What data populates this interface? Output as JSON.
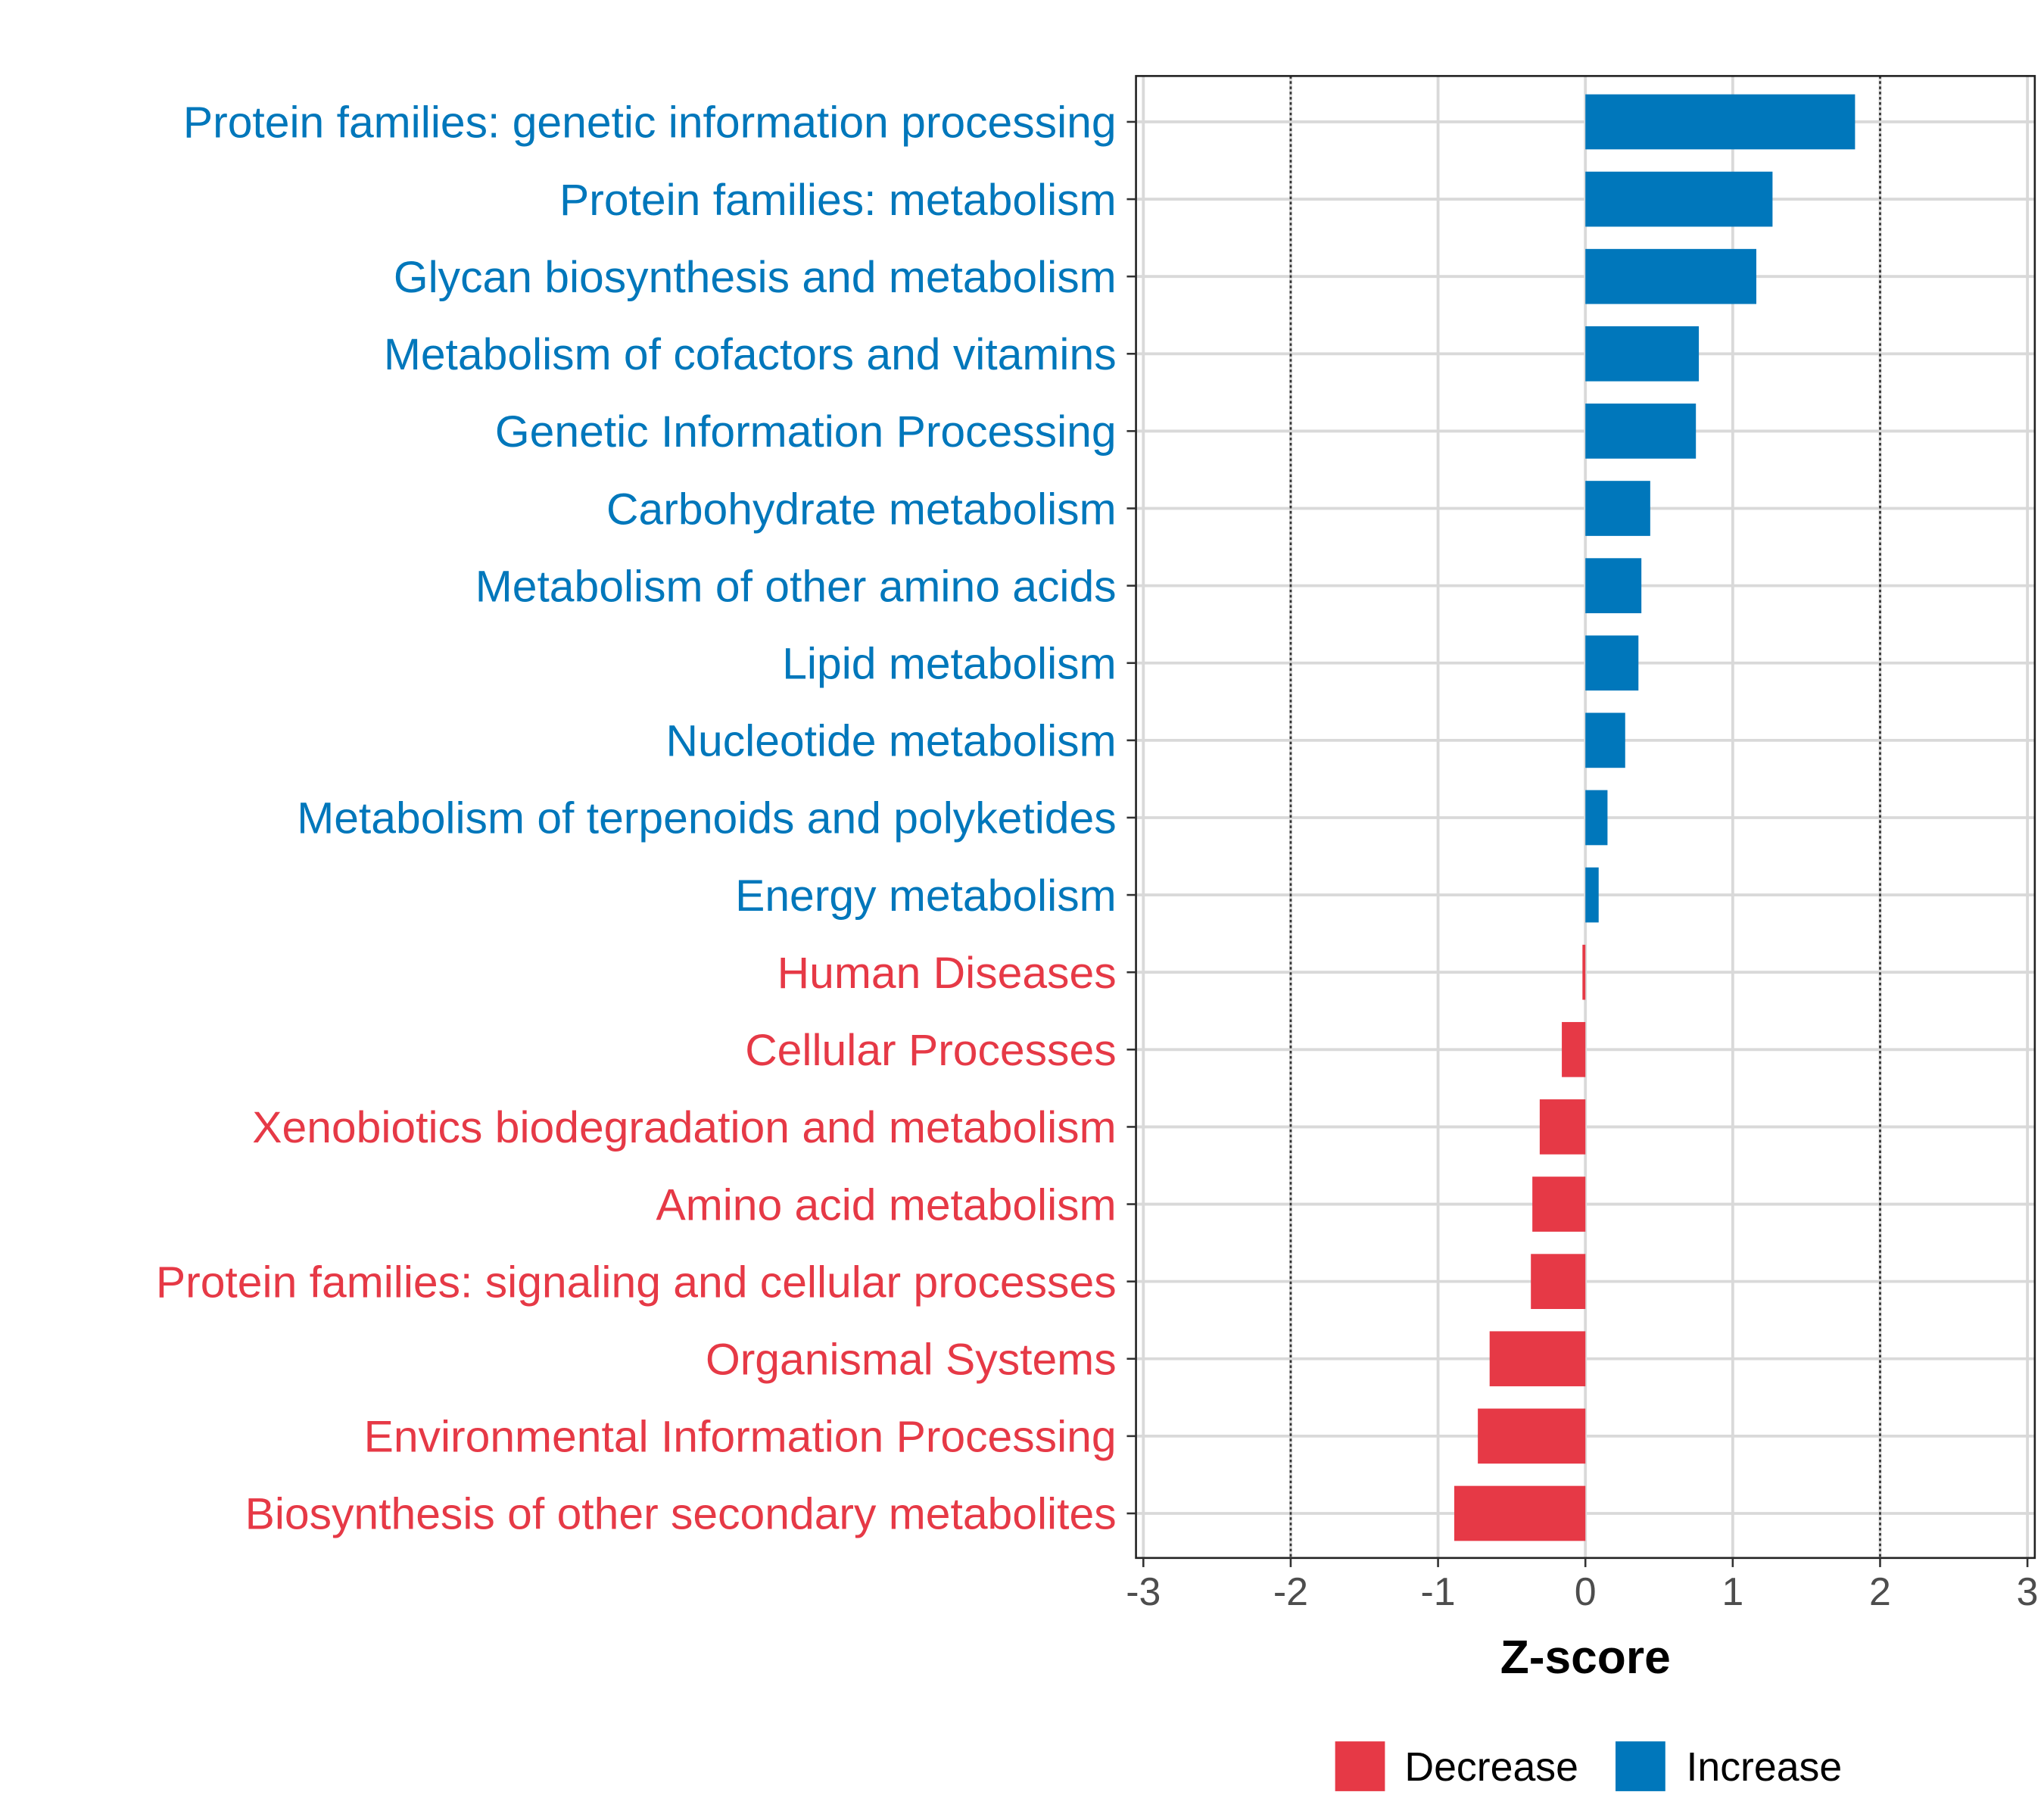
{
  "chart_data": {
    "type": "bar",
    "orientation": "horizontal",
    "title": "",
    "xlabel": "Z-score",
    "ylabel": "",
    "xlim": [
      -3.05,
      3.05
    ],
    "xticks": [
      "-3",
      "-2",
      "-1",
      "0",
      "1",
      "2",
      "3"
    ],
    "xtick_values": [
      -3,
      -2,
      -1,
      0,
      1,
      2,
      3
    ],
    "reference_lines": [
      -2,
      2
    ],
    "grid": true,
    "legend_position": "bottom",
    "colors": {
      "Decrease": "#e63946",
      "Increase": "#0077bb"
    },
    "legend": [
      {
        "label": "Decrease",
        "color": "#e63946"
      },
      {
        "label": "Increase",
        "color": "#0077bb"
      }
    ],
    "categories": [
      "Protein families: genetic information processing",
      "Protein families: metabolism",
      "Glycan biosynthesis and metabolism",
      "Metabolism of cofactors and vitamins",
      "Genetic Information Processing",
      "Carbohydrate metabolism",
      "Metabolism of other amino acids",
      "Lipid metabolism",
      "Nucleotide metabolism",
      "Metabolism of terpenoids and polyketides",
      "Energy metabolism",
      "Human Diseases",
      "Cellular Processes",
      "Xenobiotics biodegradation and metabolism",
      "Amino acid metabolism",
      "Protein families: signaling and cellular processes",
      "Organismal Systems",
      "Environmental Information Processing",
      "Biosynthesis of other secondary metabolites"
    ],
    "values": [
      1.83,
      1.27,
      1.16,
      0.77,
      0.75,
      0.44,
      0.38,
      0.36,
      0.27,
      0.15,
      0.09,
      -0.02,
      -0.16,
      -0.31,
      -0.36,
      -0.37,
      -0.65,
      -0.73,
      -0.89
    ],
    "groups": [
      "Increase",
      "Increase",
      "Increase",
      "Increase",
      "Increase",
      "Increase",
      "Increase",
      "Increase",
      "Increase",
      "Increase",
      "Increase",
      "Decrease",
      "Decrease",
      "Decrease",
      "Decrease",
      "Decrease",
      "Decrease",
      "Decrease",
      "Decrease"
    ]
  }
}
